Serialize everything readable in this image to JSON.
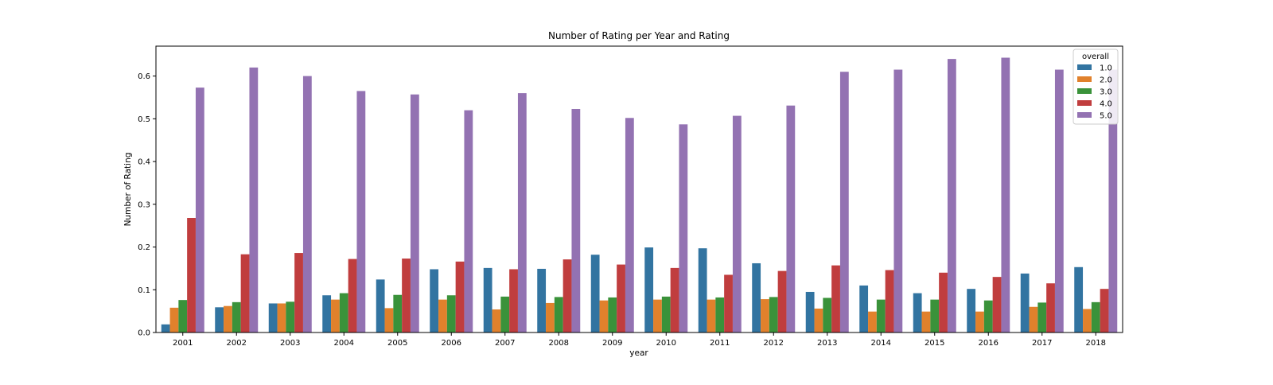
{
  "chart_data": {
    "type": "bar",
    "title": "Number of Rating per Year and Rating",
    "xlabel": "year",
    "ylabel": "Number of Rating",
    "ylim": [
      0,
      0.67
    ],
    "yticks": [
      "0.0",
      "0.1",
      "0.2",
      "0.3",
      "0.4",
      "0.5",
      "0.6"
    ],
    "grid": false,
    "legend": {
      "title": "overall",
      "placement": "top-right"
    },
    "categories": [
      "2001",
      "2002",
      "2003",
      "2004",
      "2005",
      "2006",
      "2007",
      "2008",
      "2009",
      "2010",
      "2011",
      "2012",
      "2013",
      "2014",
      "2015",
      "2016",
      "2017",
      "2018"
    ],
    "series": [
      {
        "name": "1.0",
        "color": "#3274a1",
        "values": [
          0.019,
          0.059,
          0.068,
          0.087,
          0.124,
          0.148,
          0.151,
          0.149,
          0.182,
          0.199,
          0.197,
          0.162,
          0.095,
          0.11,
          0.092,
          0.102,
          0.138,
          0.153
        ]
      },
      {
        "name": "2.0",
        "color": "#e1812c",
        "values": [
          0.058,
          0.062,
          0.068,
          0.077,
          0.057,
          0.077,
          0.054,
          0.069,
          0.075,
          0.077,
          0.077,
          0.078,
          0.056,
          0.049,
          0.049,
          0.049,
          0.06,
          0.055
        ]
      },
      {
        "name": "3.0",
        "color": "#3a923a",
        "values": [
          0.076,
          0.071,
          0.072,
          0.092,
          0.088,
          0.087,
          0.084,
          0.083,
          0.082,
          0.084,
          0.082,
          0.083,
          0.081,
          0.077,
          0.077,
          0.075,
          0.07,
          0.071
        ]
      },
      {
        "name": "4.0",
        "color": "#c03d3e",
        "values": [
          0.268,
          0.183,
          0.186,
          0.172,
          0.173,
          0.166,
          0.148,
          0.171,
          0.159,
          0.151,
          0.135,
          0.144,
          0.157,
          0.146,
          0.14,
          0.13,
          0.115,
          0.102
        ]
      },
      {
        "name": "5.0",
        "color": "#9372b2",
        "values": [
          0.573,
          0.62,
          0.6,
          0.565,
          0.557,
          0.52,
          0.56,
          0.523,
          0.502,
          0.487,
          0.507,
          0.531,
          0.61,
          0.615,
          0.64,
          0.643,
          0.615,
          0.615
        ]
      }
    ]
  }
}
